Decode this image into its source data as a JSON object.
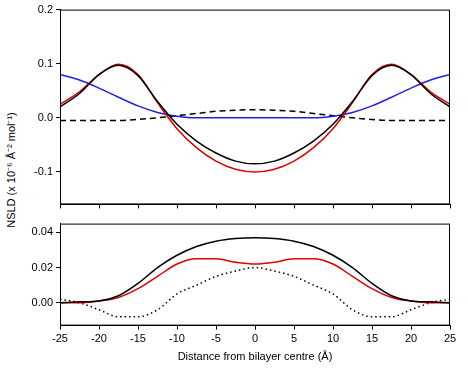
{
  "chart_data": [
    {
      "type": "line",
      "ylabel": "NSLD (x 10⁻⁶ Å⁻² mol⁻¹)",
      "x": [
        -25,
        -22.5,
        -20,
        -17.5,
        -15,
        -12.5,
        -10,
        -7.5,
        -5,
        -2.5,
        0,
        2.5,
        5,
        7.5,
        10,
        12.5,
        15,
        17.5,
        20,
        22.5,
        25
      ],
      "series": [
        {
          "color": "#000000",
          "line_style": "solid",
          "values": [
            0.02,
            0.045,
            0.08,
            0.097,
            0.078,
            0.03,
            -0.012,
            -0.043,
            -0.065,
            -0.08,
            -0.085,
            -0.08,
            -0.065,
            -0.043,
            -0.012,
            0.03,
            0.078,
            0.097,
            0.08,
            0.045,
            0.02
          ]
        },
        {
          "color": "#e00000",
          "line_style": "solid",
          "values": [
            0.025,
            0.048,
            0.08,
            0.099,
            0.08,
            0.028,
            -0.02,
            -0.055,
            -0.08,
            -0.095,
            -0.1,
            -0.095,
            -0.08,
            -0.055,
            -0.02,
            0.028,
            0.08,
            0.099,
            0.08,
            0.048,
            0.025
          ]
        },
        {
          "color": "#2020e0",
          "line_style": "solid",
          "values": [
            0.08,
            0.07,
            0.055,
            0.038,
            0.022,
            0.01,
            0.003,
            0.0,
            0.0,
            0.0,
            0.0,
            0.0,
            0.0,
            0.0,
            0.003,
            0.01,
            0.022,
            0.038,
            0.055,
            0.07,
            0.08
          ]
        },
        {
          "color": "#000000",
          "line_style": "dashed",
          "values": [
            -0.005,
            -0.005,
            -0.005,
            -0.005,
            -0.003,
            0.0,
            0.004,
            0.008,
            0.012,
            0.014,
            0.015,
            0.014,
            0.012,
            0.008,
            0.004,
            0.0,
            -0.003,
            -0.005,
            -0.005,
            -0.005,
            -0.005
          ]
        }
      ],
      "xlim": [
        -25,
        25
      ],
      "xticks": [
        -25,
        -20,
        -15,
        -10,
        -5,
        0,
        5,
        10,
        15,
        20,
        25
      ],
      "ylim": [
        -0.16,
        0.2
      ],
      "yticks": [
        {
          "value": -0.1,
          "label": "-0.1"
        },
        {
          "value": 0,
          "label": "0.0"
        },
        {
          "value": 0.1,
          "label": "0.1"
        },
        {
          "value": 0.2,
          "label": "0.2"
        }
      ],
      "tick_labels": "y",
      "grid": false
    },
    {
      "type": "line",
      "xlabel": "Distance from bilayer centre (Å)",
      "x": [
        -25,
        -22.5,
        -20,
        -17.5,
        -15,
        -12.5,
        -10,
        -7.5,
        -5,
        -2.5,
        0,
        2.5,
        5,
        7.5,
        10,
        12.5,
        15,
        17.5,
        20,
        22.5,
        25
      ],
      "series": [
        {
          "color": "#000000",
          "line_style": "solid",
          "values": [
            0.0,
            0.0005,
            0.001,
            0.004,
            0.011,
            0.02,
            0.027,
            0.032,
            0.035,
            0.0365,
            0.037,
            0.0365,
            0.035,
            0.032,
            0.027,
            0.02,
            0.011,
            0.004,
            0.001,
            0.0005,
            0.0
          ]
        },
        {
          "color": "#e00000",
          "line_style": "solid",
          "values": [
            0.0,
            0.0,
            0.001,
            0.003,
            0.008,
            0.015,
            0.022,
            0.025,
            0.025,
            0.023,
            0.022,
            0.023,
            0.025,
            0.025,
            0.022,
            0.015,
            0.008,
            0.003,
            0.001,
            0.0,
            0.0
          ]
        },
        {
          "color": "#000000",
          "line_style": "dotted",
          "values": [
            0.002,
            0.0,
            -0.004,
            -0.008,
            -0.008,
            -0.004,
            0.005,
            0.01,
            0.015,
            0.018,
            0.02,
            0.018,
            0.015,
            0.01,
            0.005,
            -0.004,
            -0.008,
            -0.008,
            -0.004,
            0.0,
            0.002
          ]
        }
      ],
      "xlim": [
        -25,
        25
      ],
      "xticks": [
        -25,
        -20,
        -15,
        -10,
        -5,
        0,
        5,
        10,
        15,
        20,
        25
      ],
      "ylim": [
        -0.013,
        0.045
      ],
      "yticks": [
        {
          "value": 0,
          "label": "0.00"
        },
        {
          "value": 0.02,
          "label": "0.02"
        },
        {
          "value": 0.04,
          "label": "0.04"
        }
      ],
      "grid": false
    }
  ]
}
